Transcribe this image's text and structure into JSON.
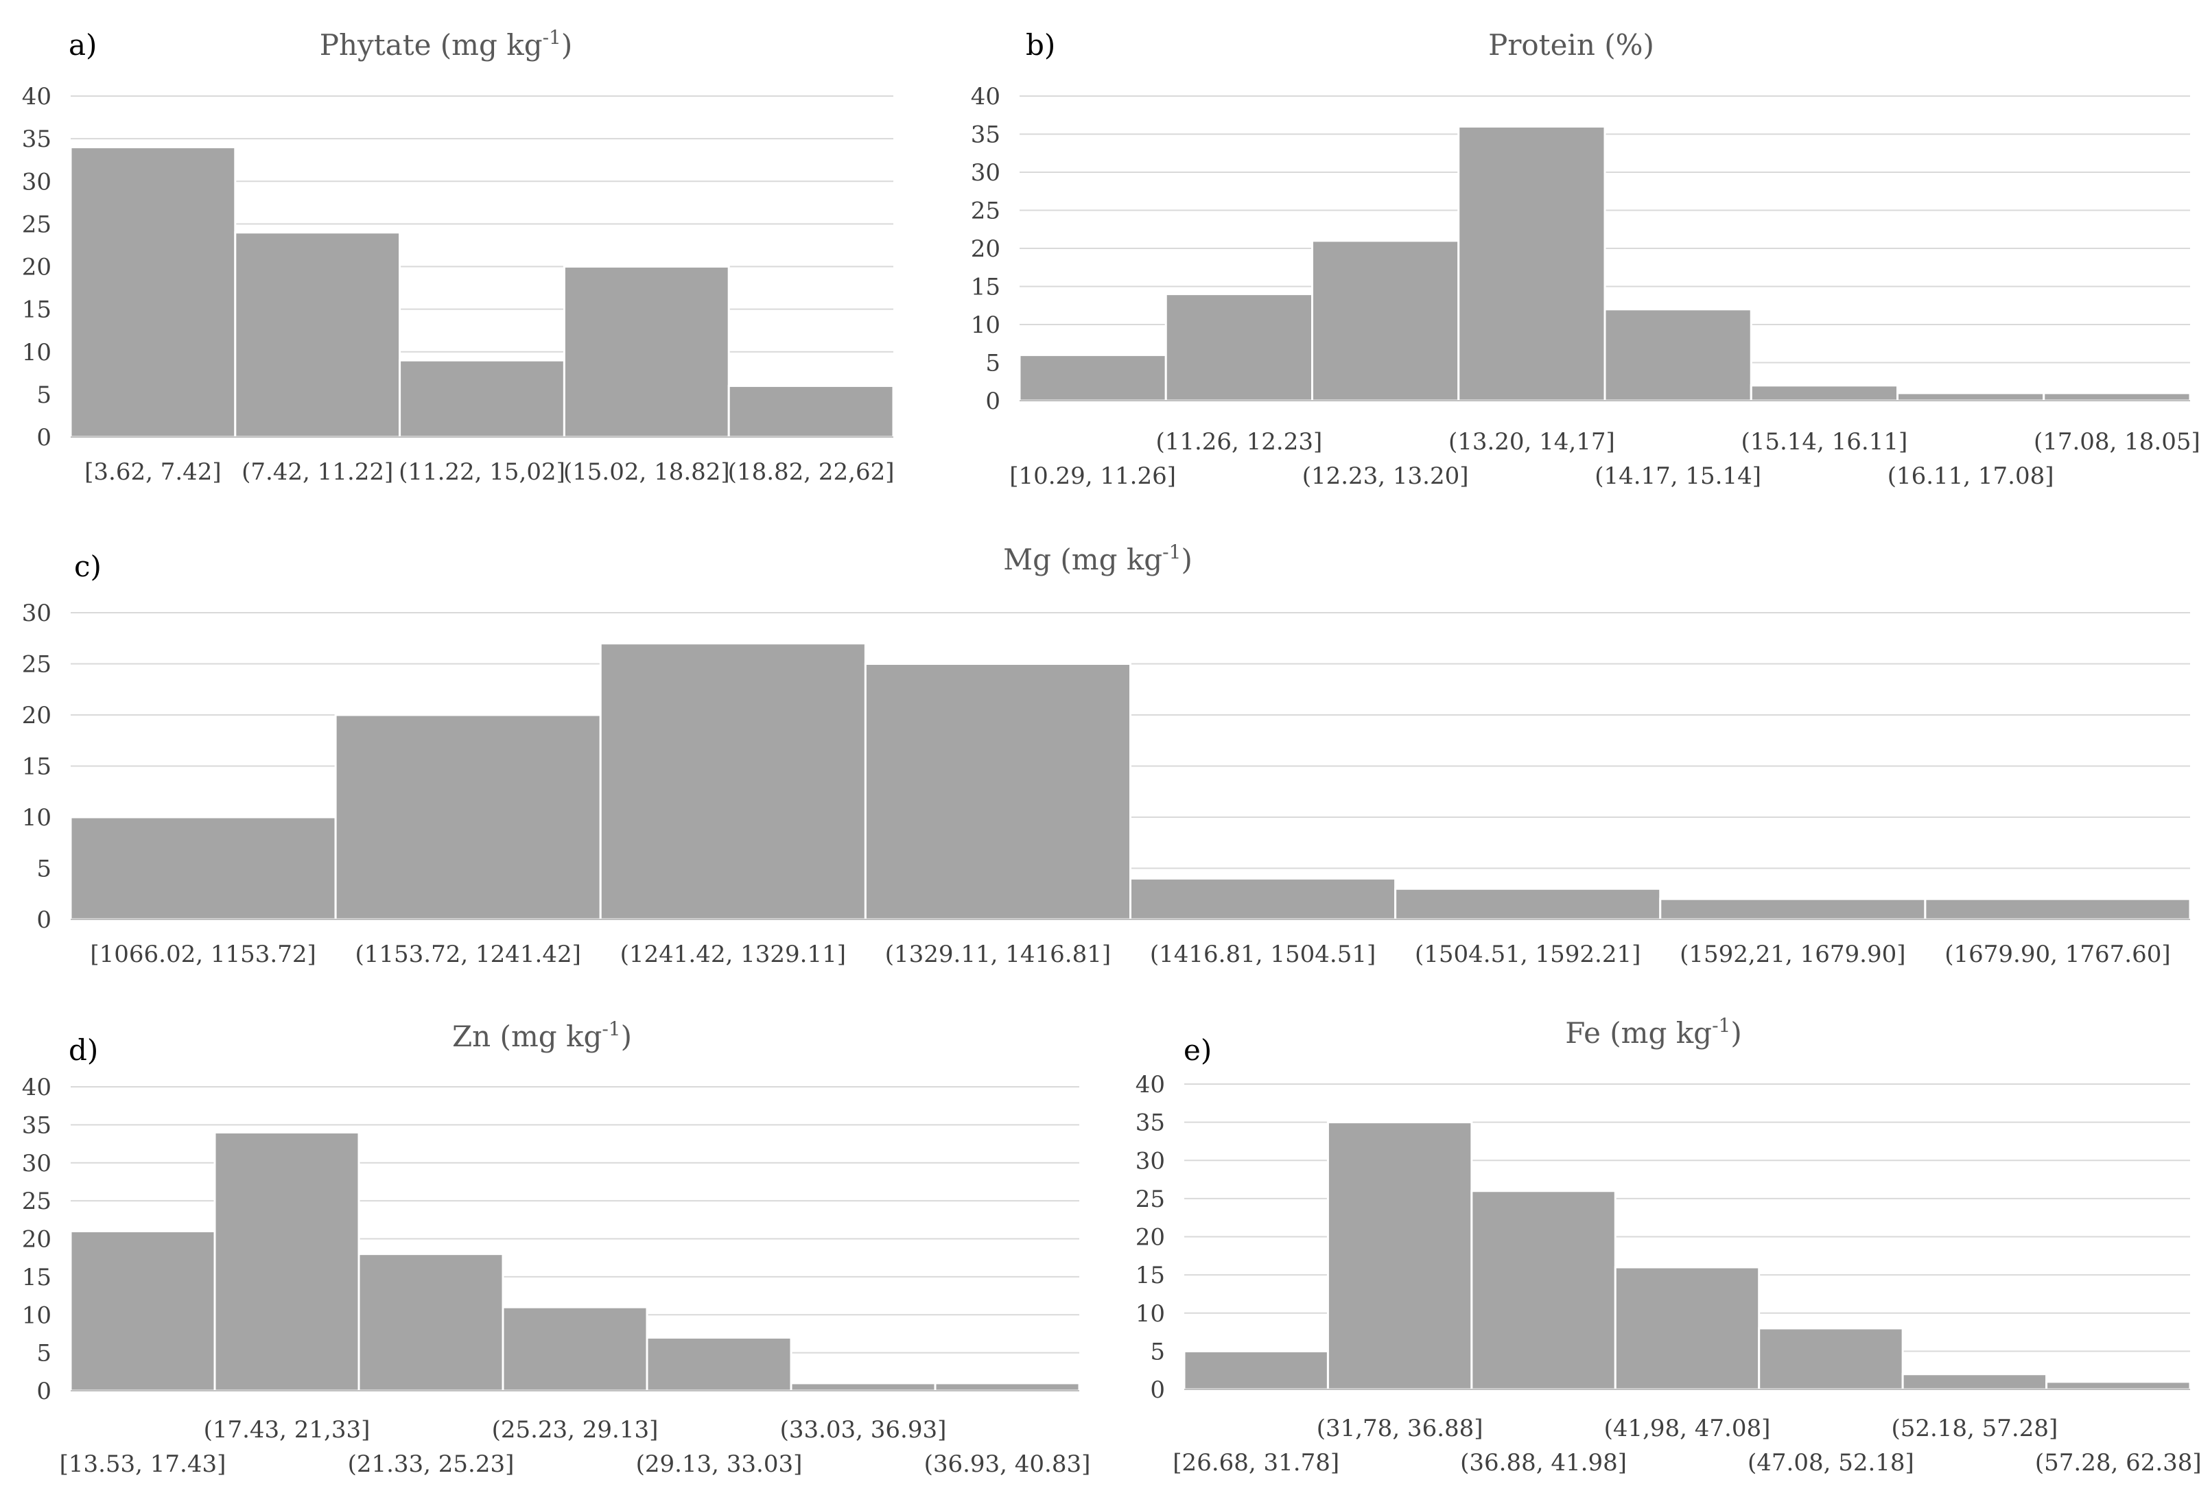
{
  "colors": {
    "bar": "#a5a5a5",
    "grid": "#d9d9d9",
    "axis": "#bfbfbf",
    "text": "#404040"
  },
  "chart_data": [
    {
      "panel": "a)",
      "type": "bar",
      "title": "Phytate (mg kg-1)",
      "title_main": "Phytate (mg kg",
      "title_sup": "-1",
      "title_end": ")",
      "categories": [
        "[3.62, 7.42]",
        "(7.42, 11.22]",
        "(11.22, 15,02]",
        "(15.02, 18.82]",
        "(18.82, 22,62]"
      ],
      "values": [
        34,
        24,
        9,
        20,
        6
      ],
      "ylim": [
        0,
        40
      ],
      "yticks": [
        "0",
        "5",
        "10",
        "15",
        "20",
        "25",
        "30",
        "35",
        "40"
      ],
      "grid": true,
      "legend": "none"
    },
    {
      "panel": "b)",
      "type": "bar",
      "title": "Protein (%)",
      "title_main": "Protein (%)",
      "title_sup": "",
      "title_end": "",
      "categories": [
        "[10.29, 11.26]",
        "(11.26, 12.23]",
        "(12.23, 13.20]",
        "(13.20, 14,17]",
        "(14.17, 15.14]",
        "(15.14, 16.11]",
        "(16.11, 17.08]",
        "(17.08, 18.05]"
      ],
      "values": [
        6,
        14,
        21,
        36,
        12,
        2,
        1,
        1
      ],
      "ylim": [
        0,
        40
      ],
      "yticks": [
        "0",
        "5",
        "10",
        "15",
        "20",
        "25",
        "30",
        "35",
        "40"
      ],
      "grid": true,
      "legend": "none"
    },
    {
      "panel": "c)",
      "type": "bar",
      "title": "Mg (mg kg-1)",
      "title_main": "Mg (mg kg",
      "title_sup": "-1",
      "title_end": ")",
      "categories": [
        "[1066.02, 1153.72]",
        "(1153.72, 1241.42]",
        "(1241.42, 1329.11]",
        "(1329.11, 1416.81]",
        "(1416.81, 1504.51]",
        "(1504.51, 1592.21]",
        "(1592,21, 1679.90]",
        "(1679.90, 1767.60]"
      ],
      "values": [
        10,
        20,
        27,
        25,
        4,
        3,
        2,
        2
      ],
      "ylim": [
        0,
        30
      ],
      "yticks": [
        "0",
        "5",
        "10",
        "15",
        "20",
        "25",
        "30"
      ],
      "grid": true,
      "legend": "none"
    },
    {
      "panel": "d)",
      "type": "bar",
      "title": "Zn (mg kg-1)",
      "title_main": "Zn (mg kg",
      "title_sup": "-1",
      "title_end": ")",
      "categories": [
        "[13.53, 17.43]",
        "(17.43, 21,33]",
        "(21.33, 25.23]",
        "(25.23, 29.13]",
        "(29.13, 33.03]",
        "(33.03, 36.93]",
        "(36.93, 40.83]"
      ],
      "values": [
        21,
        34,
        18,
        11,
        7,
        1,
        1
      ],
      "ylim": [
        0,
        40
      ],
      "yticks": [
        "0",
        "5",
        "10",
        "15",
        "20",
        "25",
        "30",
        "35",
        "40"
      ],
      "grid": true,
      "legend": "none"
    },
    {
      "panel": "e)",
      "type": "bar",
      "title": "Fe (mg kg-1)",
      "title_main": "Fe (mg kg",
      "title_sup": "-1",
      "title_end": ")",
      "categories": [
        "[26.68, 31.78]",
        "(31,78, 36.88]",
        "(36.88, 41.98]",
        "(41,98, 47.08]",
        "(47.08, 52.18]",
        "(52.18, 57.28]",
        "(57.28, 62.38]"
      ],
      "values": [
        5,
        35,
        26,
        16,
        8,
        2,
        1
      ],
      "ylim": [
        0,
        40
      ],
      "yticks": [
        "0",
        "5",
        "10",
        "15",
        "20",
        "25",
        "30",
        "35",
        "40"
      ],
      "grid": true,
      "legend": "none"
    }
  ]
}
